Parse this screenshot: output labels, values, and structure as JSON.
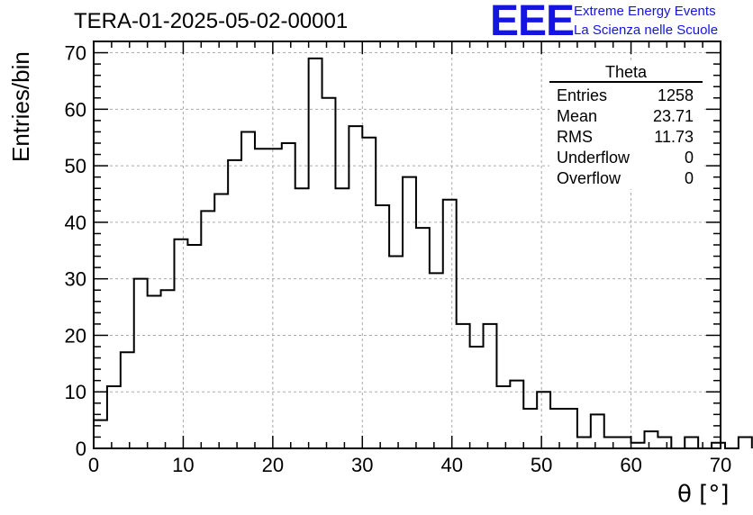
{
  "title": "TERA-01-2025-05-02-00001",
  "branding": {
    "logo": "EEE",
    "line1": "Extreme Energy Events",
    "line2": "La Scienza nelle Scuole",
    "color": "#1515e0"
  },
  "stats_box": {
    "title": "Theta",
    "rows": [
      {
        "label": "Entries",
        "value": "1258"
      },
      {
        "label": "Mean",
        "value": "23.71"
      },
      {
        "label": "RMS",
        "value": "11.73"
      },
      {
        "label": "Underflow",
        "value": "0"
      },
      {
        "label": "Overflow",
        "value": "0"
      }
    ]
  },
  "chart_data": {
    "type": "bar",
    "histogram": true,
    "xlabel": "θ [°]",
    "ylabel": "Entries/bin",
    "xlim": [
      0,
      70
    ],
    "ylim": [
      0,
      72
    ],
    "bin_width": 1.5,
    "bin_edges_start": 0,
    "values": [
      5,
      11,
      17,
      30,
      27,
      28,
      37,
      36,
      42,
      45,
      51,
      56,
      53,
      53,
      54,
      46,
      69,
      62,
      46,
      57,
      55,
      43,
      34,
      48,
      39,
      31,
      44,
      22,
      18,
      22,
      11,
      12,
      7,
      10,
      7,
      7,
      2,
      6,
      2,
      2,
      1,
      3,
      2,
      0,
      2,
      0,
      1,
      0,
      2
    ],
    "x_ticks": [
      0,
      10,
      20,
      30,
      40,
      50,
      60,
      70
    ],
    "y_ticks": [
      0,
      10,
      20,
      30,
      40,
      50,
      60,
      70
    ],
    "grid": true,
    "line_color": "#000000"
  }
}
